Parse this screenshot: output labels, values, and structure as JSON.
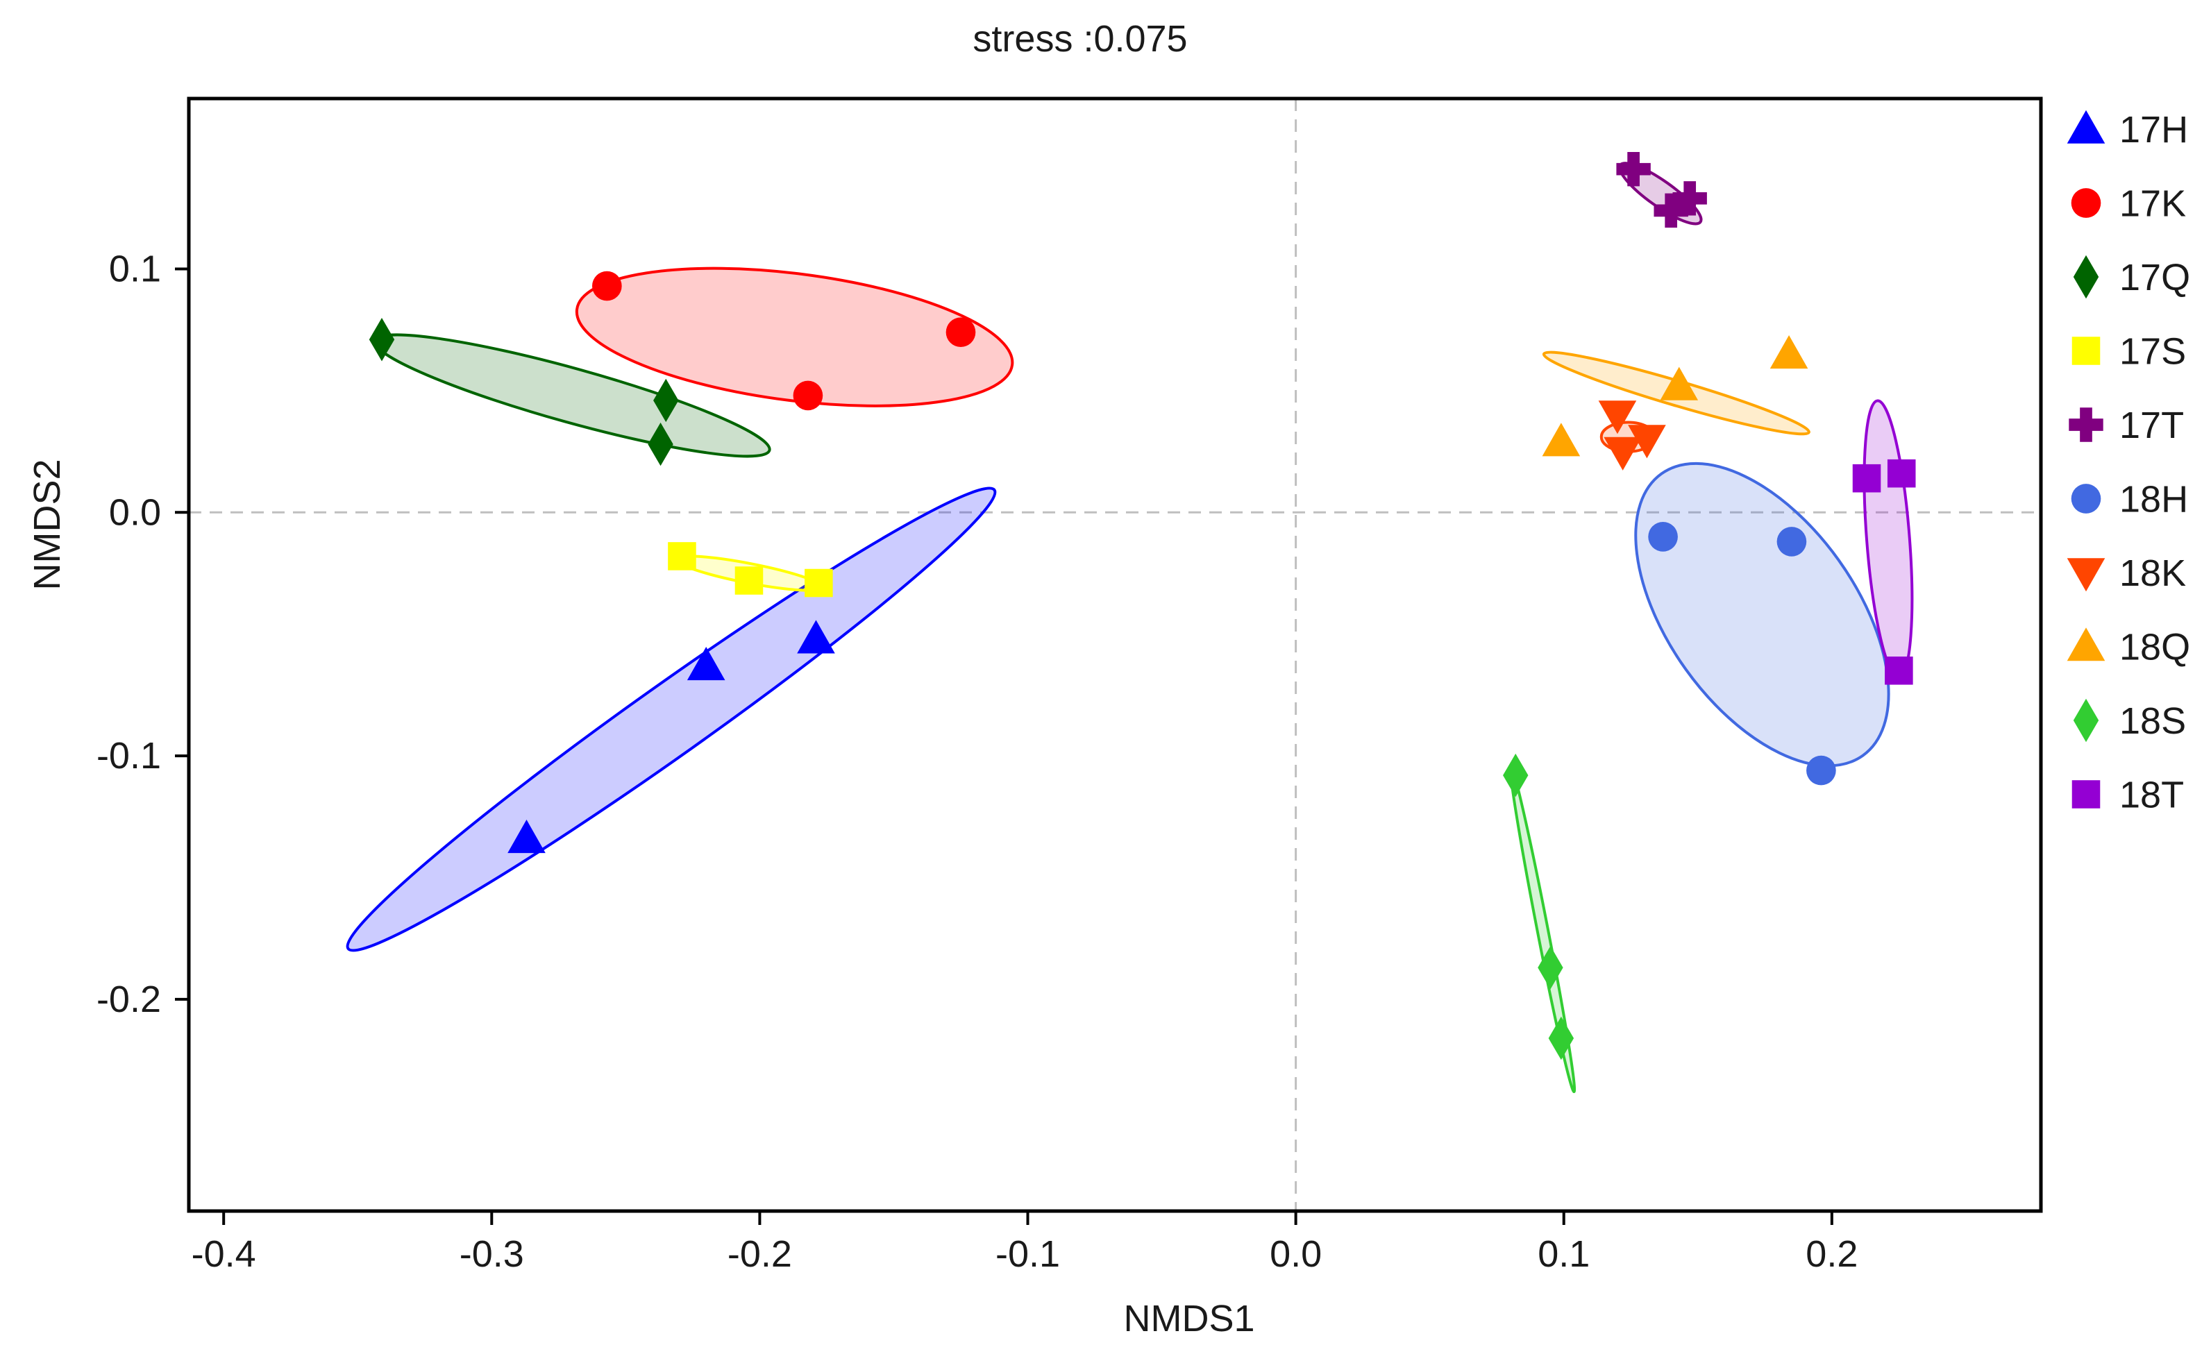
{
  "chart_data": {
    "type": "scatter",
    "title": "stress :0.075",
    "xlabel": "NMDS1",
    "ylabel": "NMDS2",
    "xlim": [
      -0.413,
      0.278
    ],
    "ylim": [
      -0.287,
      0.17
    ],
    "xticks": [
      -0.4,
      -0.3,
      -0.2,
      -0.1,
      0.0,
      0.1,
      0.2
    ],
    "yticks": [
      -0.2,
      -0.1,
      0.0,
      0.1
    ],
    "xtick_labels": [
      "-0.4",
      "-0.3",
      "-0.2",
      "-0.1",
      "0.0",
      "0.1",
      "0.2"
    ],
    "ytick_labels": [
      "-0.2",
      "-0.1",
      "0.0",
      "0.1"
    ],
    "reference_lines": {
      "x": 0,
      "y": 0,
      "style": "dashed"
    },
    "grid": false,
    "legend_position": "right",
    "series": [
      {
        "name": "17H",
        "color": "#0000ff",
        "marker": "triangle",
        "points": [
          [
            -0.287,
            -0.134
          ],
          [
            -0.22,
            -0.063
          ],
          [
            -0.179,
            -0.052
          ]
        ],
        "ellipse": {
          "center": [
            -0.233,
            -0.085
          ],
          "rx": 0.153,
          "ry": 0.014,
          "angle": 38
        }
      },
      {
        "name": "17K",
        "color": "#ff0000",
        "marker": "circle",
        "points": [
          [
            -0.257,
            0.093
          ],
          [
            -0.182,
            0.048
          ],
          [
            -0.125,
            0.074
          ]
        ],
        "ellipse": {
          "center": [
            -0.187,
            0.072
          ],
          "rx": 0.082,
          "ry": 0.026,
          "angle": -8
        }
      },
      {
        "name": "17Q",
        "color": "#006400",
        "marker": "diamond",
        "points": [
          [
            -0.341,
            0.071
          ],
          [
            -0.235,
            0.046
          ],
          [
            -0.237,
            0.028
          ]
        ],
        "ellipse": {
          "center": [
            -0.27,
            0.048
          ],
          "rx": 0.077,
          "ry": 0.011,
          "angle": -17
        }
      },
      {
        "name": "17S",
        "color": "#ffff00",
        "marker": "square",
        "points": [
          [
            -0.229,
            -0.018
          ],
          [
            -0.204,
            -0.028
          ],
          [
            -0.178,
            -0.029
          ]
        ],
        "ellipse": {
          "center": [
            -0.204,
            -0.025
          ],
          "rx": 0.028,
          "ry": 0.004,
          "angle": -12
        }
      },
      {
        "name": "17T",
        "color": "#800080",
        "marker": "cross",
        "points": [
          [
            0.126,
            0.141
          ],
          [
            0.14,
            0.124
          ],
          [
            0.147,
            0.129
          ]
        ],
        "ellipse": {
          "center": [
            0.136,
            0.131
          ],
          "rx": 0.019,
          "ry": 0.005,
          "angle": -38
        }
      },
      {
        "name": "18H",
        "color": "#4169e1",
        "marker": "circle",
        "points": [
          [
            0.137,
            -0.01
          ],
          [
            0.185,
            -0.012
          ],
          [
            0.196,
            -0.106
          ]
        ],
        "ellipse": {
          "center": [
            0.174,
            -0.042
          ],
          "rx": 0.069,
          "ry": 0.036,
          "angle": -57
        }
      },
      {
        "name": "18K",
        "color": "#ff4500",
        "marker": "triangle-down",
        "points": [
          [
            0.12,
            0.04
          ],
          [
            0.122,
            0.025
          ],
          [
            0.131,
            0.03
          ]
        ],
        "ellipse": {
          "center": [
            0.124,
            0.031
          ],
          "rx": 0.01,
          "ry": 0.006,
          "angle": 0
        }
      },
      {
        "name": "18Q",
        "color": "#ffa500",
        "marker": "triangle",
        "points": [
          [
            0.099,
            0.029
          ],
          [
            0.143,
            0.052
          ],
          [
            0.184,
            0.065
          ]
        ],
        "ellipse": {
          "center": [
            0.142,
            0.049
          ],
          "rx": 0.052,
          "ry": 0.005,
          "angle": -18
        }
      },
      {
        "name": "18S",
        "color": "#32cd32",
        "marker": "diamond",
        "points": [
          [
            0.082,
            -0.108
          ],
          [
            0.095,
            -0.187
          ],
          [
            0.099,
            -0.216
          ]
        ],
        "ellipse": {
          "center": [
            0.092,
            -0.171
          ],
          "rx": 0.068,
          "ry": 0.002,
          "angle": -80
        }
      },
      {
        "name": "18T",
        "color": "#9400d3",
        "marker": "square",
        "points": [
          [
            0.213,
            0.014
          ],
          [
            0.226,
            0.016
          ],
          [
            0.225,
            -0.065
          ]
        ],
        "ellipse": {
          "center": [
            0.221,
            -0.011
          ],
          "rx": 0.057,
          "ry": 0.008,
          "angle": -86
        }
      }
    ]
  }
}
